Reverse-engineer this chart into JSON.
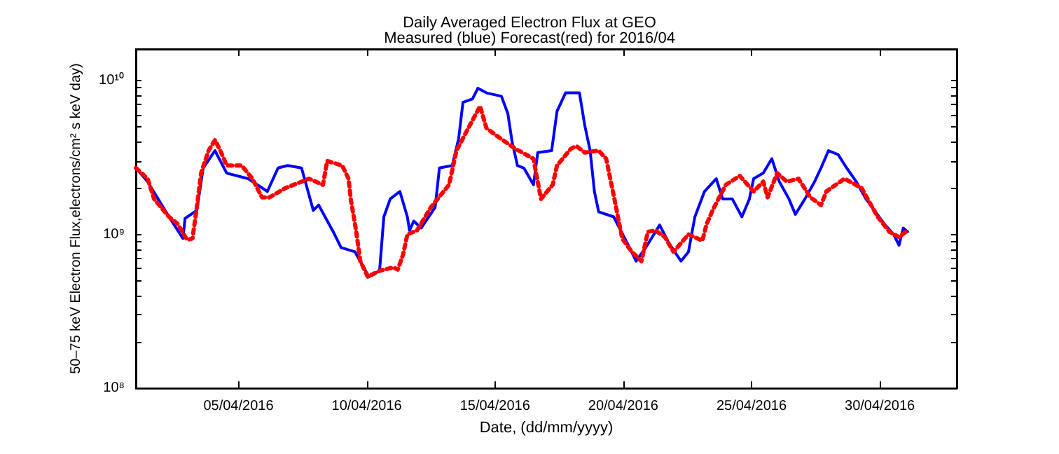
{
  "chart_data": {
    "type": "line",
    "title": "Daily Averaged Electron Flux at GEO",
    "subtitle": "Measured (blue) Forecast(red) for 2016/04",
    "xlabel": "Date, (dd/mm/yyyy)",
    "ylabel": "50–75 keV Electron Flux,electrons/cm² s keV day)",
    "log": "y",
    "grid": false,
    "xlim": [
      "2016-04-01T00:00",
      "2016-05-03T00:00"
    ],
    "xticks": [
      {
        "value": "2016-04-05T00:00",
        "label": "05/04/2016"
      },
      {
        "value": "2016-04-10T00:00",
        "label": "10/04/2016"
      },
      {
        "value": "2016-04-15T00:00",
        "label": "15/04/2016"
      },
      {
        "value": "2016-04-20T00:00",
        "label": "20/04/2016"
      },
      {
        "value": "2016-04-25T00:00",
        "label": "25/04/2016"
      },
      {
        "value": "2016-04-30T00:00",
        "label": "30/04/2016"
      }
    ],
    "ylim": [
      100000000.0,
      16000000000.0
    ],
    "yticks": [
      {
        "value": 100000000.0,
        "label": "10⁸"
      },
      {
        "value": 200000000.0,
        "label": null
      },
      {
        "value": 300000000.0,
        "label": null
      },
      {
        "value": 400000000.0,
        "label": null
      },
      {
        "value": 500000000.0,
        "label": null
      },
      {
        "value": 600000000.0,
        "label": null
      },
      {
        "value": 700000000.0,
        "label": null
      },
      {
        "value": 800000000.0,
        "label": null
      },
      {
        "value": 900000000.0,
        "label": null
      },
      {
        "value": 1000000000.0,
        "label": "10⁹"
      },
      {
        "value": 2000000000.0,
        "label": null
      },
      {
        "value": 3000000000.0,
        "label": null
      },
      {
        "value": 4000000000.0,
        "label": null
      },
      {
        "value": 5000000000.0,
        "label": null
      },
      {
        "value": 6000000000.0,
        "label": null
      },
      {
        "value": 7000000000.0,
        "label": null
      },
      {
        "value": 8000000000.0,
        "label": null
      },
      {
        "value": 9000000000.0,
        "label": null
      },
      {
        "value": 10000000000.0,
        "label": "10¹⁰"
      }
    ],
    "series": [
      {
        "color": "#0000ff",
        "line_style": "solid",
        "x": [
          "2016-04-01T00:00",
          "2016-04-01T11:00",
          "2016-04-02T07:00",
          "2016-04-02T20:00",
          "2016-04-02T22:00",
          "2016-04-03T09:00",
          "2016-04-03T15:00",
          "2016-04-04T02:00",
          "2016-04-04T13:00",
          "2016-04-05T09:00",
          "2016-04-06T03:00",
          "2016-04-06T13:00",
          "2016-04-06T22:00",
          "2016-04-07T11:00",
          "2016-04-07T22:00",
          "2016-04-08T03:00",
          "2016-04-08T16:00",
          "2016-04-09T00:00",
          "2016-04-09T13:00",
          "2016-04-10T02:00",
          "2016-04-10T12:00",
          "2016-04-10T16:00",
          "2016-04-10T22:00",
          "2016-04-11T07:00",
          "2016-04-11T14:00",
          "2016-04-11T16:00",
          "2016-04-11T20:00",
          "2016-04-12T03:00",
          "2016-04-12T16:00",
          "2016-04-12T20:00",
          "2016-04-13T08:00",
          "2016-04-13T14:00",
          "2016-04-13T18:00",
          "2016-04-14T03:00",
          "2016-04-14T08:00",
          "2016-04-14T16:00",
          "2016-04-15T06:00",
          "2016-04-15T12:00",
          "2016-04-15T16:00",
          "2016-04-15T21:00",
          "2016-04-16T03:00",
          "2016-04-16T12:00",
          "2016-04-16T16:00",
          "2016-04-17T05:00",
          "2016-04-17T10:00",
          "2016-04-17T18:00",
          "2016-04-18T07:00",
          "2016-04-18T12:00",
          "2016-04-18T17:00",
          "2016-04-18T21:00",
          "2016-04-19T01:00",
          "2016-04-19T15:00",
          "2016-04-20T04:00",
          "2016-04-20T12:00",
          "2016-04-20T21:00",
          "2016-04-21T10:00",
          "2016-04-21T19:00",
          "2016-04-22T06:00",
          "2016-04-22T13:00",
          "2016-04-22T19:00",
          "2016-04-23T04:00",
          "2016-04-23T15:00",
          "2016-04-23T21:00",
          "2016-04-24T06:00",
          "2016-04-24T15:00",
          "2016-04-24T22:00",
          "2016-04-25T02:00",
          "2016-04-25T11:00",
          "2016-04-25T19:00",
          "2016-04-26T02:00",
          "2016-04-26T11:00",
          "2016-04-26T17:00",
          "2016-04-27T02:00",
          "2016-04-27T11:00",
          "2016-04-27T17:00",
          "2016-04-28T00:00",
          "2016-04-28T09:00",
          "2016-04-28T17:00",
          "2016-04-29T02:00",
          "2016-04-29T11:00",
          "2016-04-29T20:00",
          "2016-04-30T05:00",
          "2016-04-30T13:00",
          "2016-04-30T18:00",
          "2016-04-30T22:00",
          "2016-05-01T02:00"
        ],
        "values": [
          2700000000.0,
          2200000000.0,
          1300000000.0,
          940000000.0,
          1270000000.0,
          1430000000.0,
          2700000000.0,
          3500000000.0,
          2500000000.0,
          2300000000.0,
          1900000000.0,
          2700000000.0,
          2800000000.0,
          2700000000.0,
          1430000000.0,
          1550000000.0,
          1060000000.0,
          820000000.0,
          770000000.0,
          530000000.0,
          580000000.0,
          1300000000.0,
          1700000000.0,
          1900000000.0,
          1300000000.0,
          1060000000.0,
          1220000000.0,
          1100000000.0,
          1500000000.0,
          2700000000.0,
          2800000000.0,
          4200000000.0,
          7200000000.0,
          7600000000.0,
          8900000000.0,
          8300000000.0,
          7900000000.0,
          6100000000.0,
          4000000000.0,
          2800000000.0,
          2700000000.0,
          2100000000.0,
          3400000000.0,
          3500000000.0,
          6300000000.0,
          8300000000.0,
          8300000000.0,
          5100000000.0,
          3500000000.0,
          1900000000.0,
          1400000000.0,
          1300000000.0,
          870000000.0,
          670000000.0,
          820000000.0,
          1150000000.0,
          870000000.0,
          670000000.0,
          770000000.0,
          1300000000.0,
          1900000000.0,
          2300000000.0,
          1700000000.0,
          1700000000.0,
          1300000000.0,
          1700000000.0,
          2300000000.0,
          2500000000.0,
          3100000000.0,
          2200000000.0,
          1700000000.0,
          1350000000.0,
          1700000000.0,
          2200000000.0,
          2700000000.0,
          3500000000.0,
          3300000000.0,
          2700000000.0,
          2200000000.0,
          1700000000.0,
          1400000000.0,
          1150000000.0,
          1000000000.0,
          850000000.0,
          1100000000.0,
          1040000000.0
        ]
      },
      {
        "color": "#ff0000",
        "line_style": "dotted",
        "x": [
          "2016-04-01T00:00",
          "2016-04-01T11:00",
          "2016-04-01T17:00",
          "2016-04-02T07:00",
          "2016-04-02T15:00",
          "2016-04-03T00:00",
          "2016-04-03T05:00",
          "2016-04-03T09:00",
          "2016-04-03T13:00",
          "2016-04-03T20:00",
          "2016-04-04T02:00",
          "2016-04-04T07:00",
          "2016-04-04T13:00",
          "2016-04-05T03:00",
          "2016-04-05T13:00",
          "2016-04-05T22:00",
          "2016-04-06T05:00",
          "2016-04-06T20:00",
          "2016-04-07T18:00",
          "2016-04-08T07:00",
          "2016-04-08T11:00",
          "2016-04-09T01:00",
          "2016-04-09T07:00",
          "2016-04-09T09:00",
          "2016-04-09T14:00",
          "2016-04-09T18:00",
          "2016-04-10T01:00",
          "2016-04-10T12:00",
          "2016-04-11T01:00",
          "2016-04-11T05:00",
          "2016-04-11T10:00",
          "2016-04-11T14:00",
          "2016-04-11T23:00",
          "2016-04-12T12:00",
          "2016-04-13T05:00",
          "2016-04-13T12:00",
          "2016-04-13T23:00",
          "2016-04-14T10:00",
          "2016-04-14T16:00",
          "2016-04-15T01:00",
          "2016-04-15T19:00",
          "2016-04-16T12:00",
          "2016-04-16T14:00",
          "2016-04-16T19:00",
          "2016-04-17T06:00",
          "2016-04-17T10:00",
          "2016-04-17T23:00",
          "2016-04-18T04:00",
          "2016-04-18T12:00",
          "2016-04-19T01:00",
          "2016-04-19T08:00",
          "2016-04-19T15:00",
          "2016-04-19T23:00",
          "2016-04-20T08:00",
          "2016-04-20T17:00",
          "2016-04-20T23:00",
          "2016-04-21T06:00",
          "2016-04-21T15:00",
          "2016-04-21T23:00",
          "2016-04-22T13:00",
          "2016-04-23T02:00",
          "2016-04-23T06:00",
          "2016-04-23T13:00",
          "2016-04-24T00:00",
          "2016-04-24T13:00",
          "2016-04-25T02:00",
          "2016-04-25T11:00",
          "2016-04-25T15:00",
          "2016-04-26T00:00",
          "2016-04-26T09:00",
          "2016-04-26T20:00",
          "2016-04-27T07:00",
          "2016-04-27T17:00",
          "2016-04-27T22:00",
          "2016-04-28T15:00",
          "2016-04-29T07:00",
          "2016-04-29T22:00",
          "2016-04-30T09:00",
          "2016-04-30T18:00",
          "2016-05-01T02:00"
        ],
        "values": [
          2700000000.0,
          2300000000.0,
          1700000000.0,
          1300000000.0,
          1170000000.0,
          920000000.0,
          940000000.0,
          1500000000.0,
          2500000000.0,
          3500000000.0,
          4100000000.0,
          3500000000.0,
          2800000000.0,
          2800000000.0,
          2300000000.0,
          1740000000.0,
          1740000000.0,
          2000000000.0,
          2300000000.0,
          2100000000.0,
          3000000000.0,
          2800000000.0,
          2300000000.0,
          1700000000.0,
          1060000000.0,
          670000000.0,
          530000000.0,
          580000000.0,
          610000000.0,
          590000000.0,
          740000000.0,
          1000000000.0,
          1060000000.0,
          1500000000.0,
          2100000000.0,
          3500000000.0,
          4900000000.0,
          6800000000.0,
          4900000000.0,
          4400000000.0,
          3600000000.0,
          3100000000.0,
          2600000000.0,
          1700000000.0,
          2100000000.0,
          2800000000.0,
          3600000000.0,
          3750000000.0,
          3400000000.0,
          3500000000.0,
          3100000000.0,
          1800000000.0,
          940000000.0,
          770000000.0,
          670000000.0,
          1040000000.0,
          1060000000.0,
          960000000.0,
          770000000.0,
          1000000000.0,
          910000000.0,
          1170000000.0,
          1500000000.0,
          2100000000.0,
          2400000000.0,
          1900000000.0,
          2200000000.0,
          1740000000.0,
          2500000000.0,
          2200000000.0,
          2300000000.0,
          1740000000.0,
          1550000000.0,
          1900000000.0,
          2300000000.0,
          2000000000.0,
          1300000000.0,
          1040000000.0,
          960000000.0,
          1060000000.0
        ]
      }
    ]
  }
}
